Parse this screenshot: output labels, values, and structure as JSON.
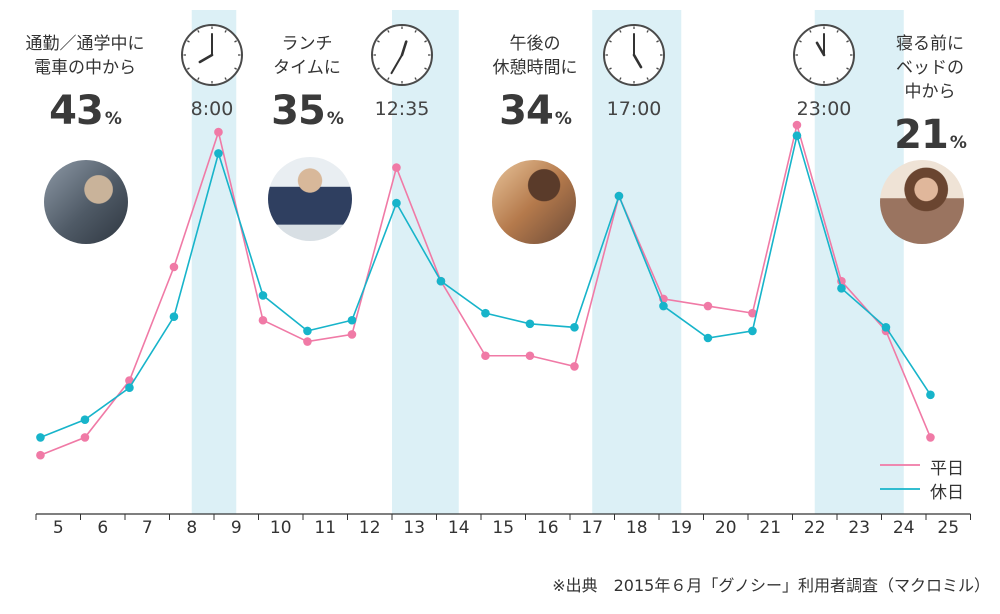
{
  "chart_data": {
    "type": "line",
    "categories": [
      "5",
      "6",
      "7",
      "8",
      "9",
      "10",
      "11",
      "12",
      "13",
      "14",
      "15",
      "16",
      "17",
      "18",
      "19",
      "20",
      "21",
      "22",
      "23",
      "24",
      "25"
    ],
    "x_points": [
      4.6,
      5.6,
      6.6,
      7.6,
      8.6,
      9.6,
      10.6,
      11.6,
      12.6,
      13.6,
      14.6,
      15.6,
      16.6,
      17.6,
      18.6,
      19.6,
      20.6,
      21.6,
      22.6,
      23.6,
      24.6,
      25.6
    ],
    "series": [
      {
        "name": "平日",
        "color": "#f07aa6",
        "values": [
          7,
          12,
          28,
          60,
          98,
          45,
          39,
          41,
          88,
          56,
          35,
          35,
          32,
          80,
          51,
          49,
          47,
          100,
          56,
          42,
          12
        ]
      },
      {
        "name": "休日",
        "color": "#17b4ca",
        "values": [
          12,
          17,
          26,
          46,
          92,
          52,
          42,
          45,
          78,
          56,
          47,
          44,
          43,
          80,
          49,
          40,
          42,
          97,
          54,
          43,
          24
        ]
      }
    ],
    "highlight_bands": [
      "8-9",
      "12.5-14",
      "17-19",
      "22-24"
    ]
  },
  "callouts": [
    {
      "line1": "通勤／通学中に",
      "line2": "電車の中から",
      "pct": "43",
      "unit": "%"
    },
    {
      "line1": "ランチ",
      "line2": "タイムに",
      "pct": "35",
      "unit": "%"
    },
    {
      "line1": "午後の",
      "line2": "休憩時間に",
      "pct": "34",
      "unit": "%"
    },
    {
      "line1": "寝る前に",
      "line2": "ベッドの",
      "line3": "中から",
      "pct": "21",
      "unit": "%"
    }
  ],
  "clocks": [
    {
      "time": "8:00",
      "hour": 8,
      "minute": 0
    },
    {
      "time": "12:35",
      "hour": 12,
      "minute": 35
    },
    {
      "time": "17:00",
      "hour": 17,
      "minute": 0
    },
    {
      "time": "23:00",
      "hour": 23,
      "minute": 0
    }
  ],
  "x_labels": [
    "5",
    "6",
    "7",
    "8",
    "9",
    "10",
    "11",
    "12",
    "13",
    "14",
    "15",
    "16",
    "17",
    "18",
    "19",
    "20",
    "21",
    "22",
    "23",
    "24",
    "25"
  ],
  "legend": [
    {
      "label": "平日",
      "color": "#f07aa6"
    },
    {
      "label": "休日",
      "color": "#17b4ca"
    }
  ],
  "source": "※出典　2015年６月「グノシー」利用者調査（マクロミル）",
  "colors": {
    "band": "#dcf0f6",
    "weekday": "#f07aa6",
    "holiday": "#17b4ca",
    "axis": "#333333"
  }
}
